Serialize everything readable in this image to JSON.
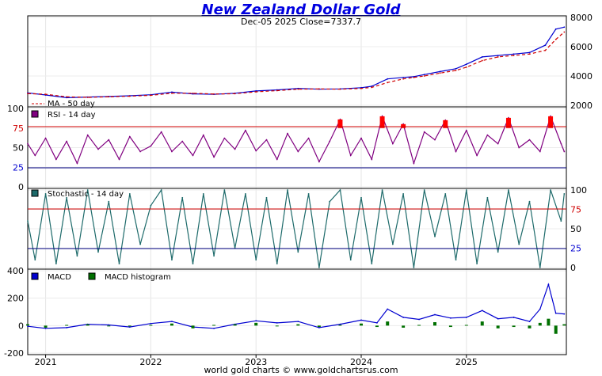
{
  "title": "New Zealand Dollar Gold",
  "subtitle": "Dec-05  2025   Close=7337.7",
  "footer": "world gold charts © www.goldchartsrus.com",
  "chart_data": [
    {
      "panel": "price",
      "type": "line",
      "x_tick_labels": [
        "2021",
        "2022",
        "2023",
        "2024",
        "2025"
      ],
      "y_tick_labels": [
        "2000",
        "4000",
        "6000",
        "8000"
      ],
      "ylim": [
        2000,
        8000
      ],
      "legend": [
        "MA - 50 day"
      ],
      "series": [
        {
          "name": "",
          "color": "#0000d0",
          "x": [
            2020.83,
            2021.0,
            2021.2,
            2021.4,
            2021.6,
            2021.8,
            2022.0,
            2022.2,
            2022.4,
            2022.6,
            2022.8,
            2023.0,
            2023.2,
            2023.4,
            2023.6,
            2023.8,
            2024.0,
            2024.1,
            2024.25,
            2024.4,
            2024.5,
            2024.6,
            2024.75,
            2024.9,
            2025.0,
            2025.15,
            2025.3,
            2025.45,
            2025.6,
            2025.75,
            2025.85,
            2025.93
          ],
          "y": [
            2850,
            2700,
            2520,
            2560,
            2600,
            2650,
            2720,
            2900,
            2780,
            2750,
            2820,
            2980,
            3050,
            3150,
            3100,
            3120,
            3200,
            3300,
            3800,
            3900,
            3950,
            4100,
            4300,
            4500,
            4800,
            5300,
            5400,
            5500,
            5600,
            6100,
            7200,
            7337
          ]
        },
        {
          "name": "MA - 50 day",
          "color": "#d00000",
          "x": [
            2020.83,
            2021.0,
            2021.2,
            2021.4,
            2021.6,
            2021.8,
            2022.0,
            2022.2,
            2022.4,
            2022.6,
            2022.8,
            2023.0,
            2023.2,
            2023.4,
            2023.6,
            2023.8,
            2024.0,
            2024.1,
            2024.25,
            2024.4,
            2024.5,
            2024.6,
            2024.75,
            2024.9,
            2025.0,
            2025.15,
            2025.3,
            2025.45,
            2025.6,
            2025.75,
            2025.85,
            2025.93
          ],
          "y": [
            2800,
            2750,
            2580,
            2540,
            2580,
            2620,
            2680,
            2820,
            2820,
            2770,
            2790,
            2920,
            3000,
            3100,
            3120,
            3100,
            3150,
            3220,
            3550,
            3800,
            3900,
            4000,
            4200,
            4380,
            4600,
            5050,
            5300,
            5400,
            5500,
            5750,
            6500,
            7000
          ]
        }
      ]
    },
    {
      "panel": "rsi",
      "type": "line",
      "legend": [
        "RSI - 14 day"
      ],
      "y_tick_labels": [
        "0",
        "25",
        "50",
        "75",
        "100"
      ],
      "ylim": [
        0,
        100
      ],
      "reference_lines": [
        25,
        75
      ],
      "series": [
        {
          "name": "RSI - 14 day",
          "color": "#800080",
          "x": [
            2020.83,
            2020.9,
            2021.0,
            2021.1,
            2021.2,
            2021.3,
            2021.4,
            2021.5,
            2021.6,
            2021.7,
            2021.8,
            2021.9,
            2022.0,
            2022.1,
            2022.2,
            2022.3,
            2022.4,
            2022.5,
            2022.6,
            2022.7,
            2022.8,
            2022.9,
            2023.0,
            2023.1,
            2023.2,
            2023.3,
            2023.4,
            2023.5,
            2023.6,
            2023.7,
            2023.8,
            2023.9,
            2024.0,
            2024.1,
            2024.2,
            2024.3,
            2024.4,
            2024.5,
            2024.6,
            2024.7,
            2024.8,
            2024.9,
            2025.0,
            2025.1,
            2025.2,
            2025.3,
            2025.4,
            2025.5,
            2025.6,
            2025.7,
            2025.8,
            2025.9,
            2025.93
          ],
          "y": [
            55,
            40,
            62,
            35,
            58,
            30,
            66,
            48,
            60,
            35,
            64,
            45,
            52,
            70,
            45,
            58,
            40,
            66,
            38,
            62,
            48,
            72,
            46,
            60,
            35,
            68,
            45,
            62,
            32,
            58,
            86,
            40,
            62,
            35,
            90,
            55,
            80,
            30,
            70,
            60,
            85,
            45,
            72,
            40,
            66,
            55,
            88,
            50,
            60,
            45,
            90,
            55,
            45
          ]
        }
      ]
    },
    {
      "panel": "stochastic",
      "type": "line",
      "legend": [
        "Stochastic - 14 day"
      ],
      "y_tick_labels": [
        "0",
        "25",
        "50",
        "75",
        "100"
      ],
      "ylim": [
        0,
        100
      ],
      "reference_lines": [
        25,
        75
      ],
      "series": [
        {
          "name": "Stochastic - 14 day",
          "color": "#1d6a6a",
          "x": [
            2020.83,
            2020.9,
            2021.0,
            2021.1,
            2021.2,
            2021.3,
            2021.4,
            2021.5,
            2021.6,
            2021.7,
            2021.8,
            2021.9,
            2022.0,
            2022.1,
            2022.2,
            2022.3,
            2022.4,
            2022.5,
            2022.6,
            2022.7,
            2022.8,
            2022.9,
            2023.0,
            2023.1,
            2023.2,
            2023.3,
            2023.4,
            2023.5,
            2023.6,
            2023.7,
            2023.8,
            2023.9,
            2024.0,
            2024.1,
            2024.2,
            2024.3,
            2024.4,
            2024.5,
            2024.6,
            2024.7,
            2024.8,
            2024.9,
            2025.0,
            2025.1,
            2025.2,
            2025.3,
            2025.4,
            2025.5,
            2025.6,
            2025.7,
            2025.8,
            2025.9,
            2025.93
          ],
          "y": [
            60,
            10,
            95,
            5,
            90,
            15,
            100,
            20,
            85,
            5,
            95,
            30,
            80,
            100,
            10,
            90,
            5,
            95,
            15,
            100,
            25,
            95,
            10,
            90,
            5,
            100,
            20,
            95,
            0,
            85,
            100,
            10,
            90,
            5,
            100,
            30,
            95,
            0,
            100,
            40,
            95,
            10,
            100,
            5,
            90,
            20,
            100,
            30,
            85,
            0,
            100,
            60,
            95
          ]
        }
      ]
    },
    {
      "panel": "macd",
      "type": "line",
      "legend": [
        "MACD",
        "MACD histogram"
      ],
      "y_tick_labels": [
        "-200",
        "0",
        "200",
        "400"
      ],
      "ylim": [
        -200,
        400
      ],
      "series": [
        {
          "name": "MACD",
          "color": "#0000d0",
          "x": [
            2020.83,
            2021.0,
            2021.2,
            2021.4,
            2021.6,
            2021.8,
            2022.0,
            2022.2,
            2022.4,
            2022.6,
            2022.8,
            2023.0,
            2023.2,
            2023.4,
            2023.6,
            2023.8,
            2024.0,
            2024.15,
            2024.25,
            2024.4,
            2024.55,
            2024.7,
            2024.85,
            2025.0,
            2025.15,
            2025.3,
            2025.45,
            2025.6,
            2025.7,
            2025.78,
            2025.85,
            2025.93
          ],
          "y": [
            -5,
            -20,
            -15,
            10,
            5,
            -10,
            15,
            30,
            -10,
            -20,
            10,
            35,
            20,
            30,
            -15,
            10,
            40,
            20,
            120,
            60,
            45,
            80,
            55,
            60,
            110,
            50,
            60,
            30,
            120,
            300,
            90,
            85
          ]
        },
        {
          "name": "MACD histogram",
          "color": "#007000",
          "x": [
            2020.83,
            2021.0,
            2021.2,
            2021.4,
            2021.6,
            2021.8,
            2022.0,
            2022.2,
            2022.4,
            2022.6,
            2022.8,
            2023.0,
            2023.2,
            2023.4,
            2023.6,
            2023.8,
            2024.0,
            2024.15,
            2024.25,
            2024.4,
            2024.55,
            2024.7,
            2024.85,
            2025.0,
            2025.15,
            2025.3,
            2025.45,
            2025.6,
            2025.7,
            2025.78,
            2025.85,
            2025.93
          ],
          "y": [
            10,
            -15,
            5,
            10,
            -5,
            0,
            5,
            15,
            -20,
            5,
            10,
            20,
            -5,
            10,
            -10,
            5,
            15,
            -10,
            30,
            -15,
            5,
            25,
            -10,
            5,
            30,
            -20,
            -10,
            -20,
            20,
            50,
            -60,
            10
          ]
        }
      ]
    }
  ]
}
